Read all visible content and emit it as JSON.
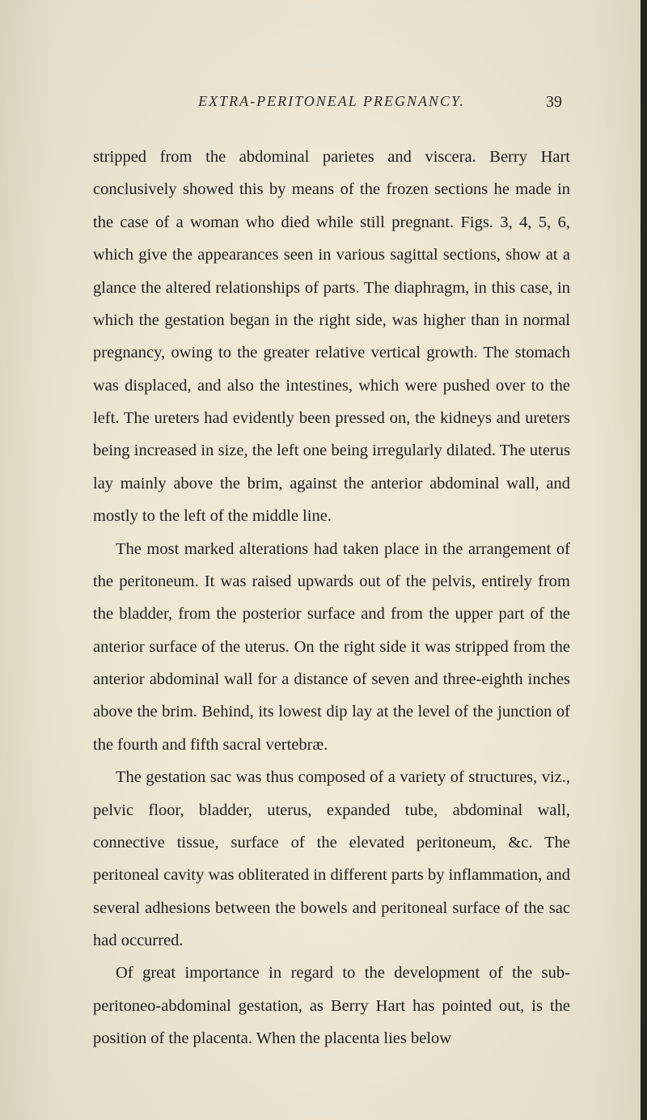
{
  "page": {
    "running_title": "EXTRA-PERITONEAL PREGNANCY.",
    "page_number": "39",
    "background_color": "#ede8d5",
    "text_color": "#1f1f1c",
    "font_size_body": 20.5,
    "font_size_header": 18,
    "line_height": 1.97,
    "paragraphs": [
      {
        "indent": false,
        "text": "stripped from the abdominal parietes and viscera. Berry Hart conclusively showed this by means of the frozen sections he made in the case of a woman who died while still pregnant. Figs. 3, 4, 5, 6, which give the appearances seen in various sagittal sections, show at a glance the altered relationships of parts. The diaphragm, in this case, in which the gestation began in the right side, was higher than in normal pregnancy, owing to the greater relative vertical growth. The stomach was displaced, and also the intestines, which were pushed over to the left. The ureters had evidently been pressed on, the kidneys and ureters being increased in size, the left one being irregularly dilated. The uterus lay mainly above the brim, against the anterior abdominal wall, and mostly to the left of the middle line."
      },
      {
        "indent": true,
        "text": "The most marked alterations had taken place in the arrangement of the peritoneum. It was raised upwards out of the pelvis, entirely from the bladder, from the posterior surface and from the upper part of the anterior surface of the uterus. On the right side it was stripped from the anterior abdominal wall for a distance of seven and three-eighth inches above the brim. Behind, its lowest dip lay at the level of the junction of the fourth and fifth sacral vertebræ."
      },
      {
        "indent": true,
        "text": "The gestation sac was thus composed of a variety of structures, viz., pelvic floor, bladder, uterus, expanded tube, abdominal wall, connective tissue, surface of the elevated peritoneum, &c. The peritoneal cavity was obliterated in different parts by inflammation, and several adhesions between the bowels and peritoneal surface of the sac had occurred."
      },
      {
        "indent": true,
        "text": "Of great importance in regard to the development of the sub-peritoneo-abdominal gestation, as Berry Hart has pointed out, is the position of the placenta. When the placenta lies below"
      }
    ]
  }
}
